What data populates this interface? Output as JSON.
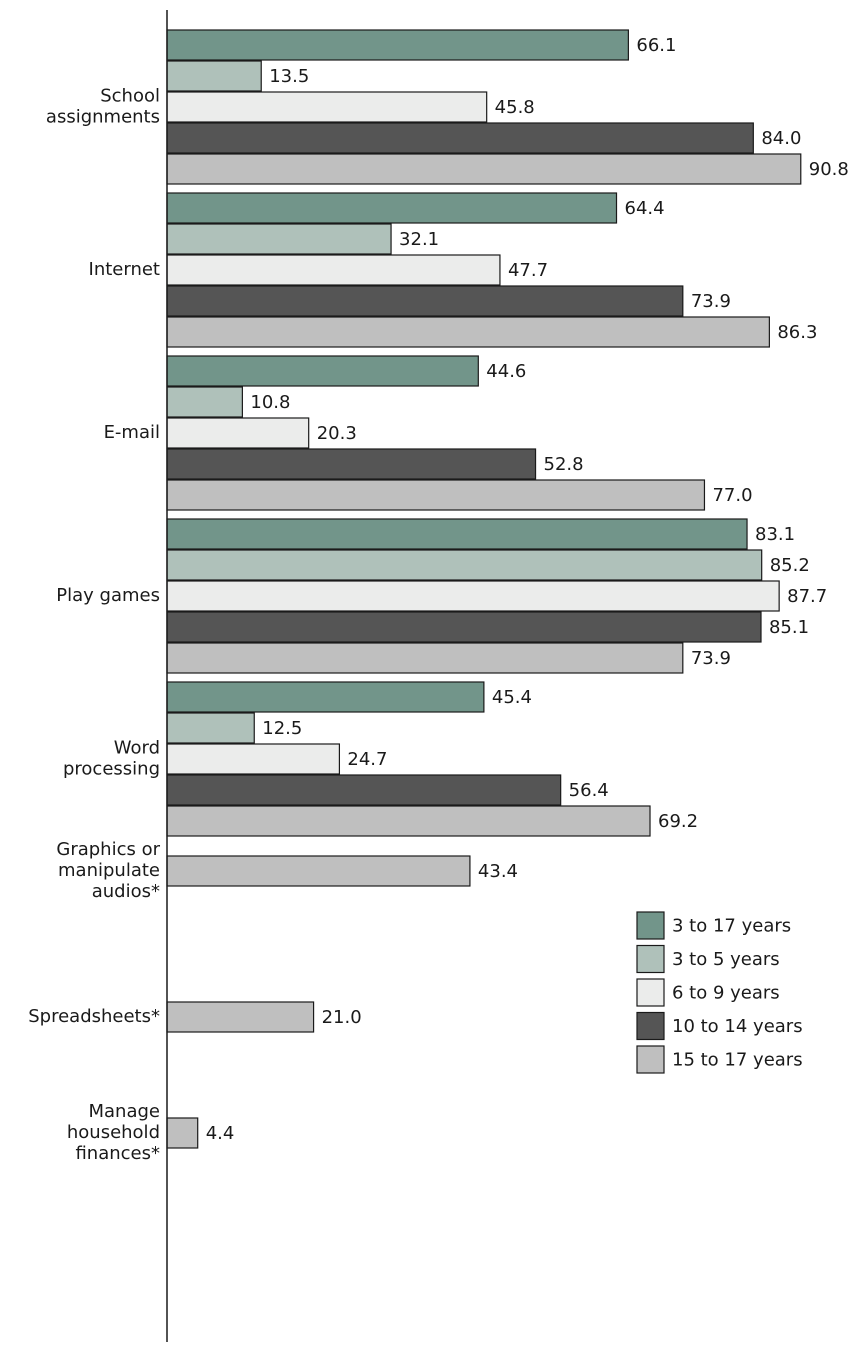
{
  "chart_data": {
    "type": "bar",
    "orientation": "horizontal",
    "title": "",
    "xlabel": "",
    "ylabel": "",
    "xlim": [
      0,
      100
    ],
    "grid": false,
    "legend_position": "bottom-right",
    "series": [
      {
        "name": "3 to 17 years",
        "color": "#72958a"
      },
      {
        "name": "3 to 5 years",
        "color": "#afc1ba"
      },
      {
        "name": "6 to 9 years",
        "color": "#ebeceb"
      },
      {
        "name": "10 to 14 years",
        "color": "#555555"
      },
      {
        "name": "15 to 17 years",
        "color": "#bfbfbf"
      }
    ],
    "groups": [
      {
        "label": [
          "School",
          "assignments"
        ],
        "values": [
          66.1,
          13.5,
          45.8,
          84.0,
          90.8
        ]
      },
      {
        "label": [
          "Internet"
        ],
        "values": [
          64.4,
          32.1,
          47.7,
          73.9,
          86.3
        ]
      },
      {
        "label": [
          "E-mail"
        ],
        "values": [
          44.6,
          10.8,
          20.3,
          52.8,
          77.0
        ]
      },
      {
        "label": [
          "Play games"
        ],
        "values": [
          83.1,
          85.2,
          87.7,
          85.1,
          73.9
        ]
      },
      {
        "label": [
          "Word",
          "processing"
        ],
        "values": [
          45.4,
          12.5,
          24.7,
          56.4,
          69.2
        ]
      },
      {
        "label": [
          "Graphics or",
          "manipulate",
          "audios*"
        ],
        "values": [
          null,
          null,
          null,
          null,
          43.4
        ]
      },
      {
        "label": [
          "Spreadsheets*"
        ],
        "values": [
          null,
          null,
          null,
          null,
          21.0
        ]
      },
      {
        "label": [
          "Manage",
          "household",
          "finances*"
        ],
        "values": [
          null,
          null,
          null,
          null,
          4.4
        ]
      }
    ]
  }
}
